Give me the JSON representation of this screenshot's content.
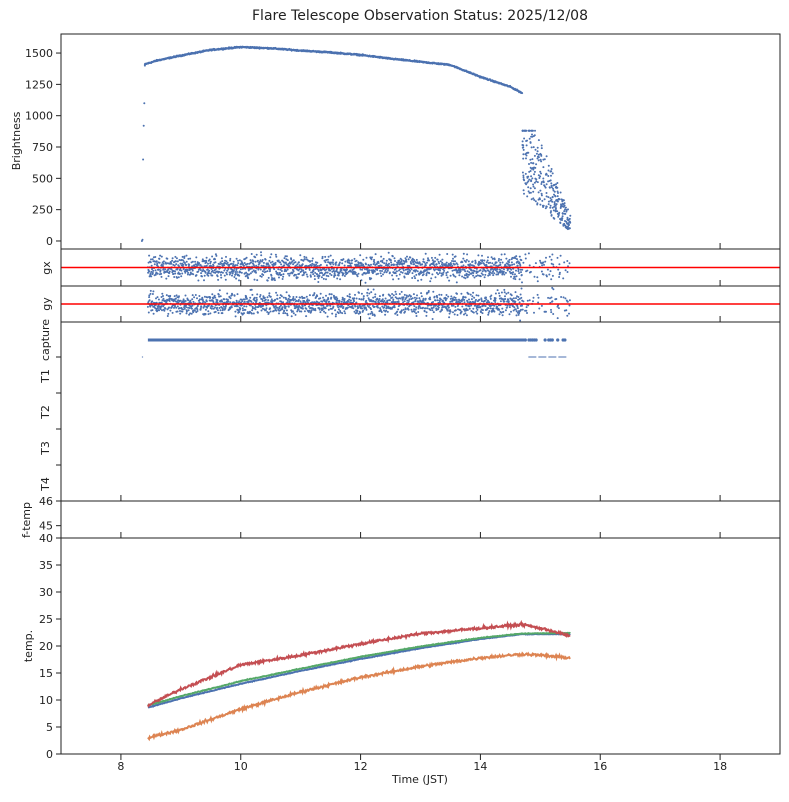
{
  "chart_data": {
    "type": "scatter",
    "title": "Flare Telescope Observation Status: 2025/12/08",
    "xlabel": "Time (JST)",
    "xlim": [
      7,
      19
    ],
    "xticks": [
      8,
      10,
      12,
      14,
      16,
      18
    ],
    "colors": {
      "blue": "#4c72b0",
      "orange": "#dd8452",
      "green": "#55a868",
      "red": "#c44e52",
      "ref": "#ff0000"
    },
    "panels": {
      "brightness": {
        "ylabel": "Brightness",
        "ylim": [
          -64,
          1652
        ],
        "yticks": [
          0,
          250,
          500,
          750,
          1000,
          1250,
          1500
        ],
        "early_points": [
          [
            8.35,
            0
          ],
          [
            8.36,
            10
          ],
          [
            8.37,
            650
          ],
          [
            8.38,
            920
          ],
          [
            8.39,
            1100
          ],
          [
            8.4,
            1400
          ]
        ],
        "trend": [
          [
            8.4,
            1410
          ],
          [
            8.6,
            1440
          ],
          [
            9,
            1480
          ],
          [
            9.5,
            1525
          ],
          [
            10,
            1548
          ],
          [
            10.5,
            1538
          ],
          [
            11,
            1520
          ],
          [
            11.5,
            1505
          ],
          [
            12,
            1485
          ],
          [
            12.5,
            1455
          ],
          [
            13,
            1430
          ],
          [
            13.5,
            1405
          ],
          [
            14,
            1310
          ],
          [
            14.5,
            1230
          ],
          [
            14.7,
            1180
          ]
        ],
        "scatter_range": {
          "x": [
            14.7,
            15.5
          ],
          "y": [
            30,
            880
          ]
        }
      },
      "gx": {
        "ylabel": "gx",
        "ylim": [
          -1,
          1
        ],
        "reference": 0,
        "x_range": [
          8.45,
          15.5
        ]
      },
      "gy": {
        "ylabel": "gy",
        "ylim": [
          -1,
          1
        ],
        "reference": 0,
        "x_range": [
          8.45,
          15.5
        ]
      },
      "status": {
        "yticklabels": [
          "capture",
          "T1",
          "T2",
          "T3",
          "T4"
        ],
        "capture_line": [
          8.45,
          14.75
        ],
        "capture_dots": [
          14.75,
          15.45
        ],
        "minor_marks": [
          [
            8.35,
            8.37
          ],
          [
            14.8,
            15.45
          ]
        ]
      },
      "ftemp": {
        "ylabel": "f-temp",
        "ylim": [
          44.5,
          46
        ],
        "yticks": [
          45,
          46
        ]
      },
      "temp": {
        "ylabel": "temp.",
        "ylim": [
          0,
          40
        ],
        "yticks": [
          0,
          5,
          10,
          15,
          20,
          25,
          30,
          35,
          40
        ],
        "series": [
          {
            "name": "blue",
            "color": "#4c72b0",
            "points": [
              [
                8.45,
                8.6
              ],
              [
                9,
                10.3
              ],
              [
                10,
                13.0
              ],
              [
                11,
                15.4
              ],
              [
                12,
                17.6
              ],
              [
                13,
                19.6
              ],
              [
                14,
                21.3
              ],
              [
                14.7,
                22.2
              ],
              [
                15.5,
                22.2
              ]
            ]
          },
          {
            "name": "green",
            "color": "#55a868",
            "points": [
              [
                8.45,
                9.0
              ],
              [
                9,
                10.7
              ],
              [
                10,
                13.5
              ],
              [
                11,
                15.8
              ],
              [
                12,
                18.0
              ],
              [
                13,
                19.9
              ],
              [
                14,
                21.5
              ],
              [
                14.7,
                22.3
              ],
              [
                15.5,
                22.4
              ]
            ]
          },
          {
            "name": "orange",
            "color": "#dd8452",
            "points": [
              [
                8.45,
                3.0
              ],
              [
                9,
                4.5
              ],
              [
                10,
                8.3
              ],
              [
                11,
                11.5
              ],
              [
                12,
                14.2
              ],
              [
                13,
                16.2
              ],
              [
                14,
                17.8
              ],
              [
                14.7,
                18.5
              ],
              [
                15,
                18.3
              ],
              [
                15.5,
                17.8
              ]
            ]
          },
          {
            "name": "red",
            "color": "#c44e52",
            "points": [
              [
                8.45,
                9.0
              ],
              [
                9,
                12.0
              ],
              [
                10,
                16.5
              ],
              [
                11,
                18.3
              ],
              [
                12,
                20.4
              ],
              [
                13,
                22.3
              ],
              [
                14,
                23.3
              ],
              [
                14.7,
                24.0
              ],
              [
                15.2,
                22.8
              ],
              [
                15.5,
                21.8
              ]
            ]
          }
        ]
      }
    }
  }
}
